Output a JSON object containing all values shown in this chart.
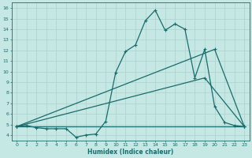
{
  "title": "",
  "xlabel": "Humidex (Indice chaleur)",
  "ylabel": "",
  "xlim": [
    -0.5,
    23.5
  ],
  "ylim": [
    3.5,
    16.5
  ],
  "yticks": [
    4,
    5,
    6,
    7,
    8,
    9,
    10,
    11,
    12,
    13,
    14,
    15,
    16
  ],
  "xticks": [
    0,
    1,
    2,
    3,
    4,
    5,
    6,
    7,
    8,
    9,
    10,
    11,
    12,
    13,
    14,
    15,
    16,
    17,
    18,
    19,
    20,
    21,
    22,
    23
  ],
  "bg_color": "#c5e8e5",
  "grid_color": "#b0d4d0",
  "line_color": "#1a6b6b",
  "line1_x": [
    0,
    1,
    2,
    3,
    4,
    5,
    6,
    7,
    8,
    9,
    10,
    11,
    12,
    13,
    14,
    15,
    16,
    17,
    18,
    19,
    20,
    21,
    22,
    23
  ],
  "line1_y": [
    4.8,
    4.9,
    4.7,
    4.6,
    4.6,
    4.6,
    3.8,
    4.0,
    4.1,
    5.3,
    9.9,
    11.9,
    12.5,
    14.8,
    15.8,
    13.9,
    14.5,
    14.0,
    9.4,
    12.1,
    6.7,
    5.2,
    4.9,
    4.8
  ],
  "line2_x": [
    0,
    23
  ],
  "line2_y": [
    4.8,
    4.8
  ],
  "line3_x": [
    0,
    19,
    23
  ],
  "line3_y": [
    4.8,
    9.4,
    4.8
  ],
  "line4_x": [
    0,
    20,
    23
  ],
  "line4_y": [
    4.8,
    12.1,
    4.8
  ],
  "marker": "+",
  "markersize": 3.5,
  "linewidth": 0.9
}
